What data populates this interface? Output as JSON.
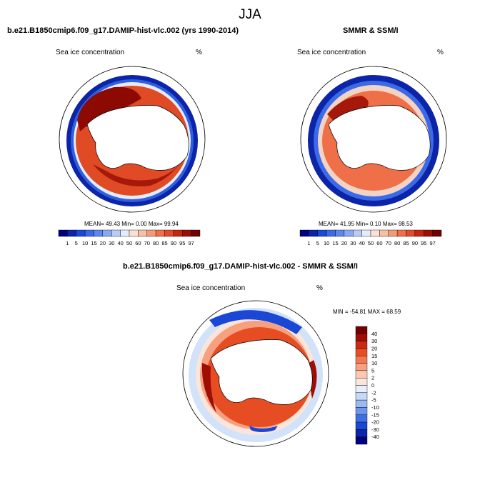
{
  "title": "JJA",
  "panels": [
    {
      "name": "model",
      "heading": "b.e21.B1850cmip6.f09_g17.DAMIP-hist-vlc.002 (yrs 1990-2014)",
      "field_label": "Sea ice concentration",
      "units": "%",
      "stats": "MEAN=  49.43  Min=   0.00  Max=  99.94"
    },
    {
      "name": "obs",
      "heading": "SMMR & SSM/I",
      "field_label": "Sea ice concentration",
      "units": "%",
      "stats": "MEAN=  41.95  Min=   0.10  Max=  98.53"
    },
    {
      "name": "diff",
      "heading": "b.e21.B1850cmip6.f09_g17.DAMIP-hist-vlc.002 - SMMR & SSM/I",
      "field_label": "Sea ice concentration",
      "units": "%",
      "stats": "MIN = -54.81 MAX =  68.59"
    }
  ],
  "colorbar_concentration": {
    "labels": [
      "1",
      "5",
      "10",
      "15",
      "20",
      "30",
      "40",
      "50",
      "60",
      "70",
      "80",
      "85",
      "90",
      "95",
      "97"
    ],
    "colors": [
      "#00007f",
      "#0b24a8",
      "#1a49d6",
      "#3b6ae8",
      "#5d87ef",
      "#8aa8f2",
      "#b6ccf7",
      "#e4ecfb",
      "#fbe0d4",
      "#f7bfa6",
      "#f39a78",
      "#ee6f48",
      "#e24a28",
      "#c4260f",
      "#9b1005",
      "#730000"
    ]
  },
  "colorbar_difference": {
    "labels": [
      "40",
      "30",
      "20",
      "15",
      "10",
      "5",
      "2",
      "0",
      "-2",
      "-5",
      "-10",
      "-15",
      "-20",
      "-30",
      "-40"
    ],
    "colors": [
      "#730000",
      "#a00d04",
      "#cc2a10",
      "#e74d23",
      "#f2774d",
      "#f6a07f",
      "#fac8b3",
      "#fbe4da",
      "#e6effb",
      "#c5d8f7",
      "#9ab9f1",
      "#6c95ea",
      "#3f6ee4",
      "#1a47d6",
      "#0b24a8",
      "#00007f"
    ]
  }
}
